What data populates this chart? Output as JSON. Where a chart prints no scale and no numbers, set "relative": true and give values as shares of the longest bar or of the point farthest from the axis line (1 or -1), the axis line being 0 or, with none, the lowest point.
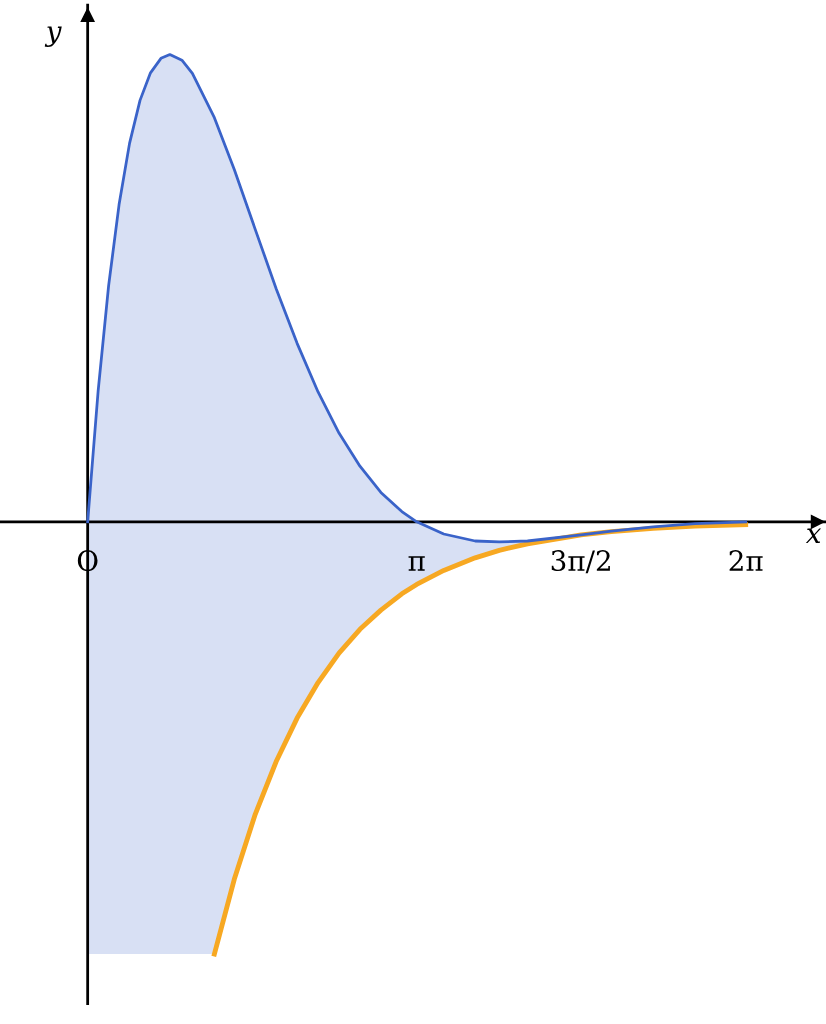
{
  "chart_data": {
    "type": "line",
    "relative": true,
    "xlabel": "x",
    "ylabel": "y",
    "legend": false,
    "tick_labels": "x",
    "marker": "none",
    "line_style": "solid",
    "xlim": [
      -0.837,
      7.05
    ],
    "xticks": [
      {
        "value": 0,
        "label": "O"
      },
      {
        "value": 3.1416,
        "label": "π"
      },
      {
        "value": 4.712,
        "label": "3π/2"
      },
      {
        "value": 6.2832,
        "label": "2π"
      }
    ],
    "series": [
      {
        "color": "#3a63c9",
        "x": [
          0,
          0.1,
          0.2,
          0.3,
          0.4,
          0.5,
          0.6,
          0.7,
          0.785,
          0.9,
          1.0,
          1.21,
          1.4,
          1.6,
          1.8,
          2.0,
          2.2,
          2.4,
          2.6,
          2.8,
          3.0,
          3.1416,
          3.4,
          3.7,
          3.93,
          4.2,
          4.712,
          5.0,
          5.4,
          5.8,
          6.2832
        ],
        "values": [
          0,
          0.28,
          0.505,
          0.679,
          0.81,
          0.902,
          0.961,
          0.992,
          1.0,
          0.988,
          0.96,
          0.865,
          0.754,
          0.626,
          0.499,
          0.382,
          0.278,
          0.19,
          0.119,
          0.063,
          0.022,
          0,
          -0.026,
          -0.041,
          -0.043,
          -0.041,
          -0.028,
          -0.02,
          -0.011,
          -0.004,
          0
        ],
        "lower": [
          -0.925,
          -0.925,
          -0.925,
          -0.925,
          -0.925,
          -0.925,
          -0.925,
          -0.925,
          -0.925,
          -0.925,
          -0.925,
          -0.925,
          -0.765,
          -0.626,
          -0.513,
          -0.42,
          -0.344,
          -0.281,
          -0.23,
          -0.189,
          -0.154,
          -0.134,
          -0.104,
          -0.077,
          -0.061,
          -0.047,
          -0.028,
          -0.021,
          -0.014,
          -0.009,
          -0.006
        ],
        "upper": [
          0,
          0.28,
          0.505,
          0.679,
          0.81,
          0.902,
          0.961,
          0.992,
          1.0,
          0.988,
          0.96,
          0.865,
          0.754,
          0.626,
          0.499,
          0.382,
          0.278,
          0.19,
          0.119,
          0.063,
          0.022,
          0,
          -0.026,
          -0.041,
          -0.043,
          -0.041,
          -0.028,
          -0.02,
          -0.011,
          -0.004,
          0
        ]
      },
      {
        "color": "#f7a822",
        "x": [
          1.21,
          1.4,
          1.6,
          1.8,
          2.0,
          2.2,
          2.4,
          2.6,
          2.8,
          3.0,
          3.1416,
          3.4,
          3.7,
          3.93,
          4.2,
          4.712,
          5.0,
          5.4,
          5.8,
          6.2832
        ],
        "values": [
          -0.925,
          -0.765,
          -0.626,
          -0.513,
          -0.42,
          -0.344,
          -0.281,
          -0.23,
          -0.189,
          -0.154,
          -0.134,
          -0.104,
          -0.077,
          -0.061,
          -0.047,
          -0.028,
          -0.021,
          -0.014,
          -0.009,
          -0.006
        ]
      }
    ]
  }
}
